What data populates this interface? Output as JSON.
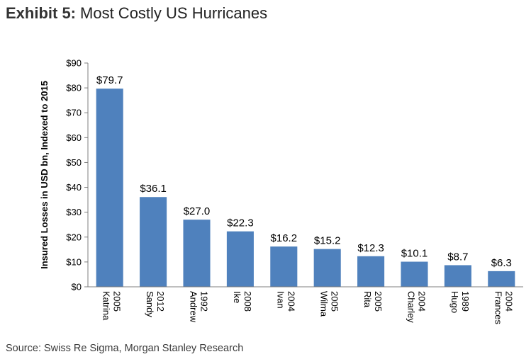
{
  "header": {
    "prefix": "Exhibit 5:",
    "title": "Most Costly US Hurricanes"
  },
  "footer": {
    "source": "Source: Swiss Re Sigma, Morgan Stanley Research"
  },
  "chart_data": {
    "type": "bar",
    "title": "Most Costly US Hurricanes",
    "xlabel": "",
    "ylabel": "Insured Losses in USD bn, Indexed to 2015",
    "ylim": [
      0,
      90
    ],
    "y_ticks": [
      "$0",
      "$10",
      "$20",
      "$30",
      "$40",
      "$50",
      "$60",
      "$70",
      "$80",
      "$90"
    ],
    "categories": [
      {
        "year": "2005",
        "name": "Katrina"
      },
      {
        "year": "2012",
        "name": "Sandy"
      },
      {
        "year": "1992",
        "name": "Andrew"
      },
      {
        "year": "2008",
        "name": "Ike"
      },
      {
        "year": "2004",
        "name": "Ivan"
      },
      {
        "year": "2005",
        "name": "Wilma"
      },
      {
        "year": "2005",
        "name": "Rita"
      },
      {
        "year": "2004",
        "name": "Charley"
      },
      {
        "year": "1989",
        "name": "Hugo"
      },
      {
        "year": "2004",
        "name": "Frances"
      }
    ],
    "values": [
      79.7,
      36.1,
      27.0,
      22.3,
      16.2,
      15.2,
      12.3,
      10.1,
      8.7,
      6.3
    ],
    "data_labels": [
      "$79.7",
      "$36.1",
      "$27.0",
      "$22.3",
      "$16.2",
      "$15.2",
      "$12.3",
      "$10.1",
      "$8.7",
      "$6.3"
    ],
    "bar_color": "#4F81BD",
    "grid": false,
    "legend": "none"
  }
}
